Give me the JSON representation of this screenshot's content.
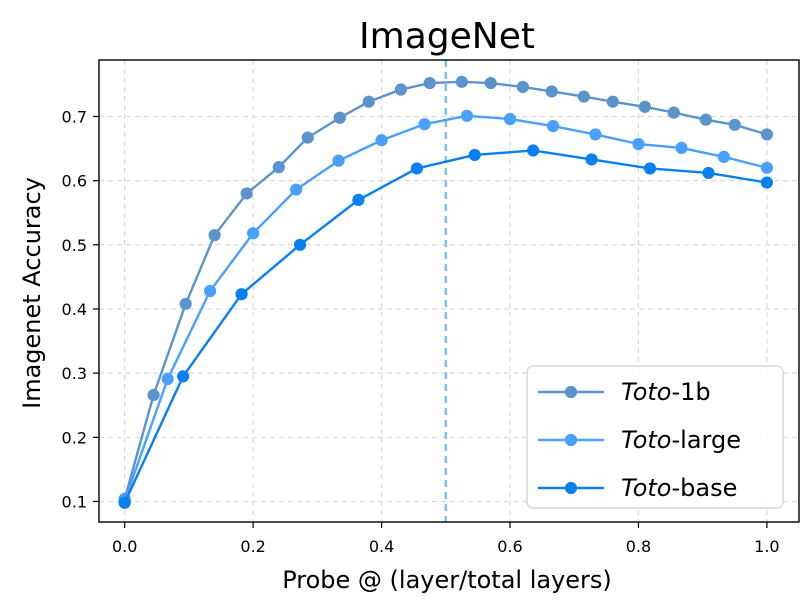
{
  "chart_data": {
    "type": "line",
    "title": "ImageNet",
    "xlabel": "Probe @ (layer/total layers)",
    "ylabel": "Imagenet Accuracy",
    "xlim": [
      -0.04,
      1.05
    ],
    "ylim": [
      0.068,
      0.788
    ],
    "xticks": [
      0.0,
      0.2,
      0.4,
      0.6,
      0.8,
      1.0
    ],
    "xtick_labels": [
      "0.0",
      "0.2",
      "0.4",
      "0.6",
      "0.8",
      "1.0"
    ],
    "yticks": [
      0.1,
      0.2,
      0.3,
      0.4,
      0.5,
      0.6,
      0.7
    ],
    "ytick_labels": [
      "0.1",
      "0.2",
      "0.3",
      "0.4",
      "0.5",
      "0.6",
      "0.7"
    ],
    "grid": true,
    "legend_position": "bottom-right",
    "vertical_line": {
      "x": 0.5,
      "color": "#7fbfff",
      "style": "dashed"
    },
    "series": [
      {
        "name": "Toto-1b",
        "legend_prefix": "Toto",
        "legend_suffix": "-1b",
        "color": "#5b93cc",
        "x": [
          0.0,
          0.045,
          0.095,
          0.14,
          0.19,
          0.24,
          0.285,
          0.335,
          0.38,
          0.43,
          0.475,
          0.525,
          0.57,
          0.62,
          0.665,
          0.715,
          0.76,
          0.81,
          0.855,
          0.905,
          0.95,
          1.0
        ],
        "y": [
          0.104,
          0.266,
          0.408,
          0.515,
          0.58,
          0.621,
          0.667,
          0.698,
          0.723,
          0.742,
          0.752,
          0.754,
          0.752,
          0.746,
          0.739,
          0.731,
          0.723,
          0.715,
          0.706,
          0.695,
          0.687,
          0.672
        ]
      },
      {
        "name": "Toto-large",
        "legend_prefix": "Toto",
        "legend_suffix": "-large",
        "color": "#4aa0ff",
        "x": [
          0.0,
          0.067,
          0.133,
          0.2,
          0.267,
          0.333,
          0.4,
          0.467,
          0.533,
          0.6,
          0.667,
          0.733,
          0.8,
          0.867,
          0.933,
          1.0
        ],
        "y": [
          0.101,
          0.291,
          0.428,
          0.518,
          0.586,
          0.631,
          0.663,
          0.688,
          0.701,
          0.696,
          0.685,
          0.672,
          0.657,
          0.651,
          0.637,
          0.62
        ]
      },
      {
        "name": "Toto-base",
        "legend_prefix": "Toto",
        "legend_suffix": "-base",
        "color": "#0a7ff0",
        "x": [
          0.0,
          0.091,
          0.182,
          0.273,
          0.364,
          0.455,
          0.545,
          0.636,
          0.727,
          0.818,
          0.909,
          1.0
        ],
        "y": [
          0.098,
          0.295,
          0.423,
          0.5,
          0.57,
          0.619,
          0.64,
          0.647,
          0.633,
          0.619,
          0.612,
          0.597
        ]
      }
    ]
  }
}
